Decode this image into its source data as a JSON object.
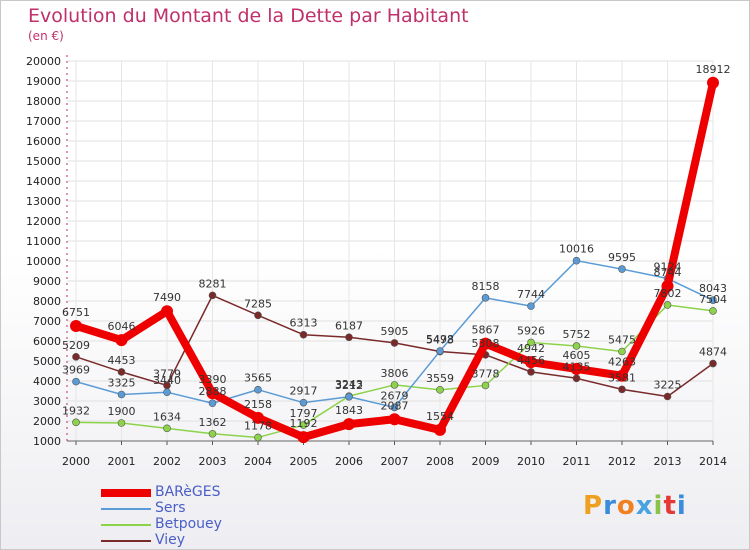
{
  "header": {
    "title": "Evolution du Montant de la Dette par Habitant",
    "subtitle": "(en €)"
  },
  "logo": {
    "letters": [
      "P",
      "r",
      "o",
      "x",
      "i",
      "t",
      "i"
    ],
    "colors": [
      "#f0a020",
      "#3b8ddb",
      "#f08020",
      "#4aa3e0",
      "#8bc34a",
      "#e53935",
      "#3b8ddb"
    ]
  },
  "chart_data": {
    "type": "line",
    "x": [
      "2000",
      "2001",
      "2002",
      "2003",
      "2004",
      "2005",
      "2006",
      "2007",
      "2008",
      "2009",
      "2010",
      "2011",
      "2012",
      "2013",
      "2014"
    ],
    "ylim": [
      1000,
      20000
    ],
    "yticks": [
      1000,
      2000,
      3000,
      4000,
      5000,
      6000,
      7000,
      8000,
      9000,
      10000,
      11000,
      12000,
      13000,
      14000,
      15000,
      16000,
      17000,
      18000,
      19000,
      20000
    ],
    "grid": true,
    "legend": "bottom-left",
    "series": [
      {
        "name": "BARèGES",
        "color": "#ee0000",
        "width": 8,
        "marker": 6,
        "values": [
          6751,
          6046,
          7490,
          3390,
          2158,
          1192,
          1843,
          2087,
          1554,
          5867,
          4942,
          4605,
          4263,
          8744,
          18912
        ],
        "labels": [
          "6751",
          "6046",
          "7490",
          "3390",
          "2158",
          "1192",
          "1843",
          "2087",
          "1554",
          "5867",
          "4942",
          "4605",
          "4263",
          "8744",
          "18912"
        ]
      },
      {
        "name": "Sers",
        "color": "#5b9bd5",
        "width": 1.5,
        "marker": 3.5,
        "values": [
          3969,
          3325,
          3440,
          2888,
          3565,
          2917,
          3212,
          2679,
          5498,
          8158,
          7744,
          10016,
          9595,
          9124,
          8043
        ],
        "labels": [
          "3969",
          "3325",
          "3440",
          "2888",
          "3565",
          "2917",
          "3212",
          "2679",
          "5498",
          "8158",
          "7744",
          "10016",
          "9595",
          "9124",
          "8043"
        ]
      },
      {
        "name": "Betpouey",
        "color": "#8cd34a",
        "width": 1.5,
        "marker": 3.5,
        "values": [
          1932,
          1900,
          1634,
          1362,
          1178,
          1797,
          3243,
          3806,
          3559,
          3778,
          5926,
          5752,
          5475,
          7802,
          7504
        ],
        "labels": [
          "1932",
          "1900",
          "1634",
          "1362",
          "1178",
          "1797",
          "3243",
          "3806",
          "3559",
          "3778",
          "5926",
          "5752",
          "5475",
          "7802",
          "7504"
        ]
      },
      {
        "name": "Viey",
        "color": "#7a2a2a",
        "width": 1.5,
        "marker": 3.5,
        "values": [
          5209,
          4453,
          3779,
          8281,
          7285,
          6313,
          6187,
          5905,
          5473,
          5308,
          4456,
          4135,
          3581,
          3225,
          4874
        ],
        "labels": [
          "5209",
          "4453",
          "3779",
          "8281",
          "7285",
          "6313",
          "6187",
          "5905",
          "5473",
          "5308",
          "4456",
          "4135",
          "3581",
          "3225",
          "4874"
        ]
      }
    ]
  }
}
